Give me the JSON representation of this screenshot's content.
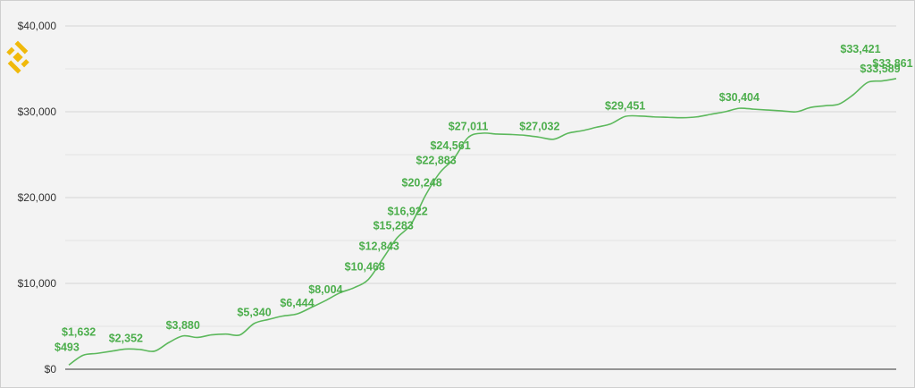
{
  "chart_data": {
    "type": "line",
    "title": "",
    "xlabel": "",
    "ylabel": "",
    "ylim": [
      0,
      40000
    ],
    "yticks": [
      {
        "value": 0,
        "label": "$0"
      },
      {
        "value": 10000,
        "label": "$10,000"
      },
      {
        "value": 20000,
        "label": "$20,000"
      },
      {
        "value": 30000,
        "label": "$30,000"
      },
      {
        "value": 40000,
        "label": "$40,000"
      }
    ],
    "grid": true,
    "legend": "none",
    "line_color": "#5cb85c",
    "label_color": "#4cae4c",
    "grid_color": "#d9d9d9",
    "logo": {
      "name": "binance-logo-icon",
      "color": "#f0b90b"
    },
    "series": [
      {
        "values": [
          493,
          1632,
          1850,
          2100,
          2352,
          2300,
          2100,
          3100,
          3880,
          3700,
          4000,
          4100,
          4000,
          5340,
          5800,
          6200,
          6444,
          7200,
          8004,
          8900,
          9500,
          10468,
          12843,
          15283,
          16922,
          20248,
          22883,
          24561,
          27011,
          27500,
          27400,
          27350,
          27250,
          27032,
          26800,
          27500,
          27800,
          28200,
          28600,
          29451,
          29500,
          29400,
          29350,
          29300,
          29400,
          29700,
          30000,
          30404,
          30300,
          30200,
          30100,
          30000,
          30500,
          30700,
          30900,
          32000,
          33421,
          33589,
          33861
        ]
      }
    ],
    "data_labels": [
      {
        "index": 0,
        "text": "$493"
      },
      {
        "index": 1,
        "text": "$1,632"
      },
      {
        "index": 4,
        "text": "$2,352"
      },
      {
        "index": 8,
        "text": "$3,880"
      },
      {
        "index": 13,
        "text": "$5,340"
      },
      {
        "index": 16,
        "text": "$6,444"
      },
      {
        "index": 18,
        "text": "$8,004"
      },
      {
        "index": 21,
        "text": "$10,468"
      },
      {
        "index": 22,
        "text": "$12,843"
      },
      {
        "index": 23,
        "text": "$15,283"
      },
      {
        "index": 24,
        "text": "$16,922"
      },
      {
        "index": 25,
        "text": "$20,248"
      },
      {
        "index": 26,
        "text": "$22,883"
      },
      {
        "index": 27,
        "text": "$24,561"
      },
      {
        "index": 28,
        "text": "$27,011"
      },
      {
        "index": 33,
        "text": "$27,032"
      },
      {
        "index": 39,
        "text": "$29,451"
      },
      {
        "index": 47,
        "text": "$30,404"
      },
      {
        "index": 56,
        "text": "$33,421"
      },
      {
        "index": 57,
        "text": "$33,589"
      },
      {
        "index": 58,
        "text": "$33,861"
      }
    ]
  }
}
